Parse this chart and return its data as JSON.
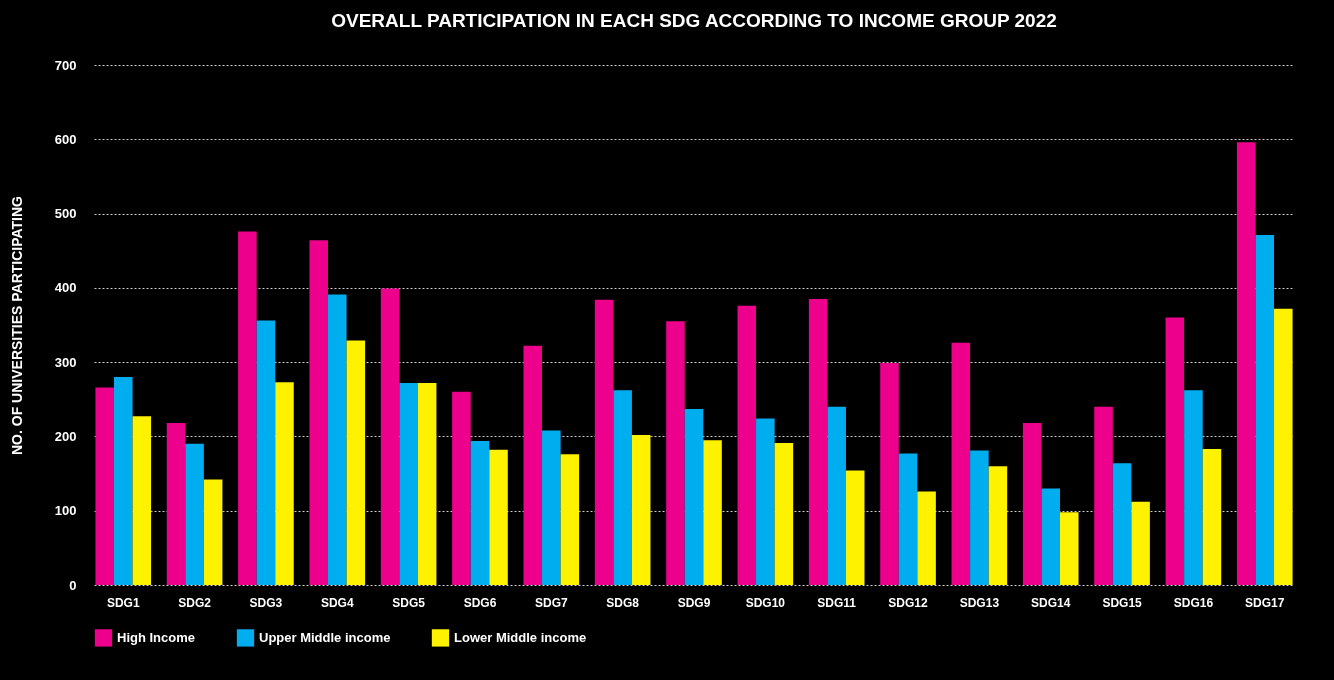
{
  "chart_data": {
    "type": "bar",
    "title": "OVERALL PARTICIPATION IN EACH SDG ACCORDING TO INCOME GROUP 2022",
    "ylabel": "NO. OF UNIVERSITIES PARTICIPATING",
    "categories": [
      "SDG1",
      "SDG2",
      "SDG3",
      "SDG4",
      "SDG5",
      "SDG6",
      "SDG7",
      "SDG8",
      "SDG9",
      "SDG10",
      "SDG11",
      "SDG12",
      "SDG13",
      "SDG14",
      "SDG15",
      "SDG16",
      "SDG17"
    ],
    "series": [
      {
        "name": "High Income",
        "color": "#ec008c",
        "values": [
          266,
          218,
          476,
          464,
          399,
          260,
          322,
          384,
          355,
          376,
          385,
          299,
          326,
          218,
          240,
          360,
          596
        ]
      },
      {
        "name": "Upper Middle income",
        "color": "#00aeef",
        "values": [
          280,
          190,
          356,
          391,
          272,
          194,
          208,
          262,
          237,
          224,
          240,
          177,
          181,
          130,
          164,
          262,
          471
        ]
      },
      {
        "name": "Lower Middle income",
        "color": "#fff200",
        "values": [
          227,
          142,
          273,
          329,
          272,
          182,
          176,
          202,
          195,
          191,
          154,
          126,
          160,
          98,
          112,
          183,
          372
        ]
      }
    ],
    "ylim": [
      0,
      700
    ],
    "yticks": [
      0,
      100,
      200,
      300,
      400,
      500,
      600,
      700
    ],
    "grid": "y",
    "legend": "bottom"
  }
}
